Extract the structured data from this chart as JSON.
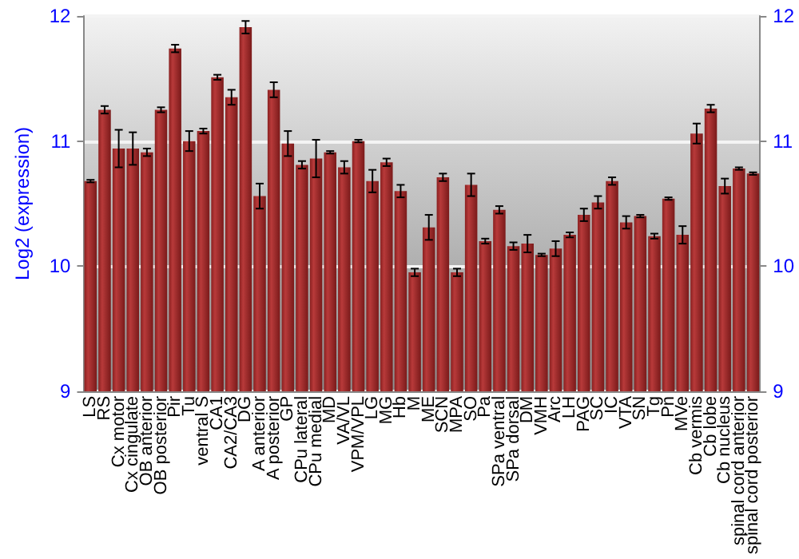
{
  "chart_data": {
    "type": "bar",
    "ylabel": "Log2 (expression)",
    "categories": [
      "LS",
      "RS",
      "Cx motor",
      "Cx cingulate",
      "OB anterior",
      "OB posterior",
      "Pir",
      "Tu",
      "ventral S",
      "CA1",
      "CA2/CA3",
      "DG",
      "A anterior",
      "A posterior",
      "GP",
      "CPu lateral",
      "CPu medial",
      "MD",
      "VA/VL",
      "VPM/VPL",
      "LG",
      "MG",
      "Hb",
      "M",
      "ME",
      "SCN",
      "MPA",
      "SO",
      "Pa",
      "SPa ventral",
      "SPa dorsal",
      "DM",
      "VMH",
      "Arc",
      "LH",
      "PAG",
      "SC",
      "IC",
      "VTA",
      "SN",
      "Tg",
      "Pn",
      "MVe",
      "Cb vermis",
      "Cb lobe",
      "Cb nucleus",
      "spinal cord anterior",
      "spinal cord posterior"
    ],
    "values": [
      10.68,
      11.25,
      10.94,
      10.94,
      10.91,
      11.25,
      11.74,
      11.0,
      11.08,
      11.51,
      11.35,
      11.91,
      10.56,
      11.41,
      10.98,
      10.81,
      10.86,
      10.91,
      10.79,
      11.0,
      10.68,
      10.83,
      10.6,
      9.95,
      10.31,
      10.71,
      9.95,
      10.65,
      10.2,
      10.45,
      10.16,
      10.18,
      10.09,
      10.14,
      10.25,
      10.41,
      10.51,
      10.68,
      10.35,
      10.4,
      10.24,
      10.54,
      10.25,
      11.06,
      11.26,
      10.64,
      10.78,
      10.74
    ],
    "errors": [
      0.01,
      0.03,
      0.15,
      0.13,
      0.03,
      0.02,
      0.03,
      0.08,
      0.02,
      0.02,
      0.06,
      0.05,
      0.1,
      0.06,
      0.1,
      0.03,
      0.15,
      0.01,
      0.05,
      0.01,
      0.09,
      0.03,
      0.05,
      0.03,
      0.1,
      0.03,
      0.03,
      0.09,
      0.02,
      0.03,
      0.03,
      0.07,
      0.01,
      0.06,
      0.02,
      0.05,
      0.05,
      0.03,
      0.05,
      0.01,
      0.02,
      0.01,
      0.07,
      0.08,
      0.03,
      0.06,
      0.01,
      0.01
    ],
    "color": "#b83a3a",
    "ylim": [
      9,
      12
    ],
    "yticks": [
      9,
      10,
      11,
      12
    ],
    "y2lim": [
      9,
      12
    ],
    "y2ticks": [
      9,
      10,
      11,
      12
    ],
    "grid": "y"
  }
}
